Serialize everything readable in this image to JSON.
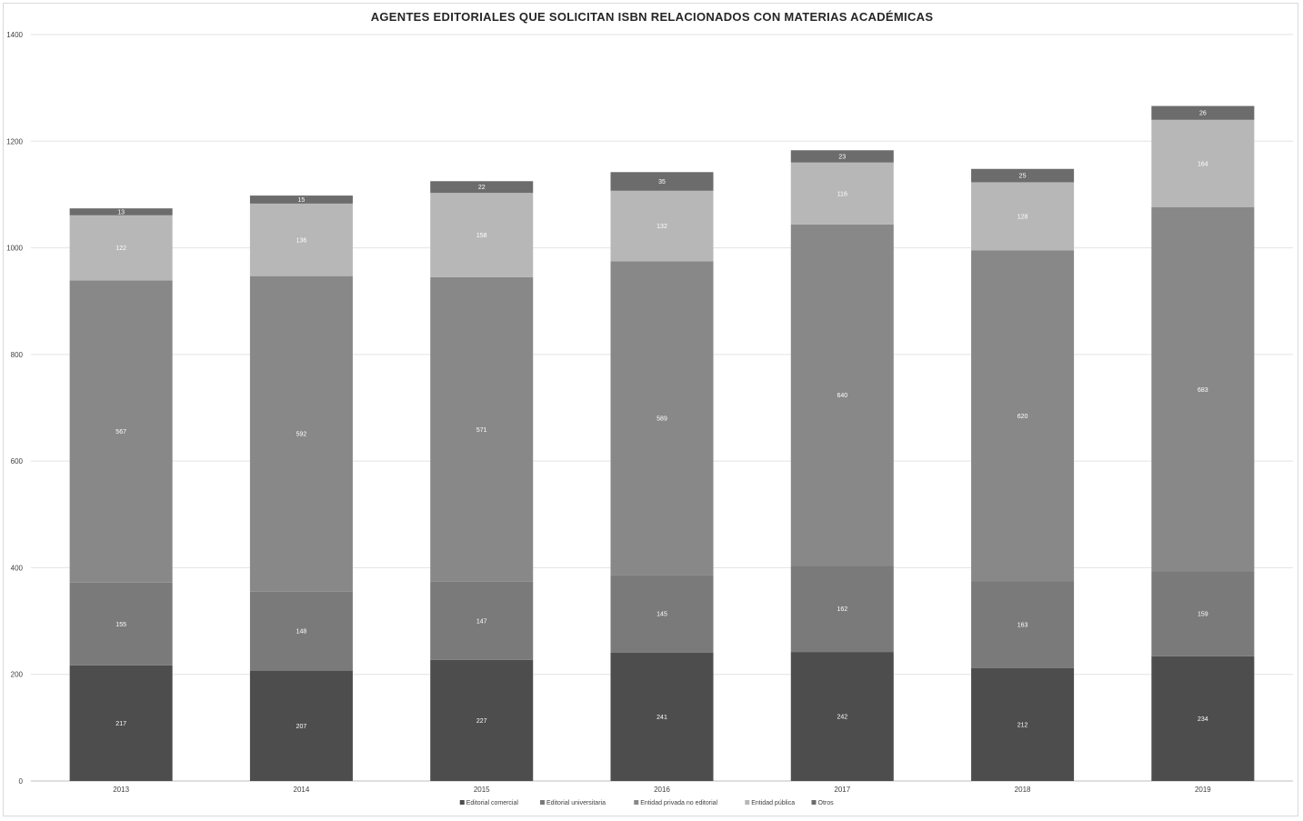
{
  "chart_data": {
    "type": "bar",
    "stacked": true,
    "title": "AGENTES EDITORIALES QUE SOLICITAN ISBN RELACIONADOS CON MATERIAS ACADÉMICAS",
    "categories": [
      "2013",
      "2014",
      "2015",
      "2016",
      "2017",
      "2018",
      "2019"
    ],
    "ylim": [
      0,
      1400
    ],
    "yticks": [
      0,
      200,
      400,
      600,
      800,
      1000,
      1200,
      1400
    ],
    "grid": true,
    "legend_position": "bottom",
    "series": [
      {
        "name": "Editorial comercial",
        "color": "#4d4d4d",
        "values": [
          217,
          207,
          227,
          241,
          242,
          212,
          234
        ]
      },
      {
        "name": "Editorial universitaria",
        "color": "#7a7a7a",
        "values": [
          155,
          148,
          147,
          145,
          162,
          163,
          159
        ]
      },
      {
        "name": "Entidad privada no editorial",
        "color": "#888888",
        "values": [
          567,
          592,
          571,
          589,
          640,
          620,
          683
        ]
      },
      {
        "name": "Entidad pública",
        "color": "#b7b7b7",
        "values": [
          122,
          136,
          158,
          132,
          116,
          128,
          164
        ]
      },
      {
        "name": "Otros",
        "color": "#6c6c6c",
        "values": [
          13,
          15,
          22,
          35,
          23,
          25,
          26
        ]
      }
    ]
  }
}
